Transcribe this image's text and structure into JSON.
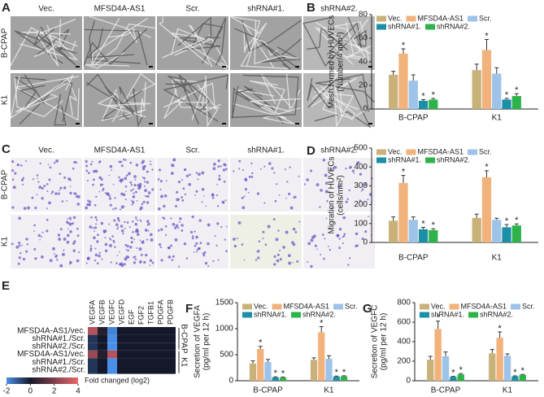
{
  "image_panels": [
    {
      "panel_label": "A",
      "columns": [
        "Vec.",
        "MFSD4A-AS1",
        "Scr.",
        "shRNA#1.",
        "shRNA#2."
      ],
      "rows": [
        "B-CPAP",
        "K1"
      ]
    },
    {
      "panel_label": "C",
      "columns": [
        "Vec.",
        "MFSD4A-AS1",
        "Scr.",
        "shRNA#1.",
        "shRNA#2."
      ],
      "rows": [
        "B-CPAP",
        "K1"
      ]
    }
  ],
  "chart_data": [
    {
      "type": "bar",
      "panel_label": "B",
      "ylabel": [
        "Mesh formed by HUVECs",
        "(Number/4 mm²)"
      ],
      "categories": [
        "B-CPAP",
        "K1"
      ],
      "ylim": [
        0,
        80
      ],
      "yticks": [
        0,
        20,
        40,
        60,
        80
      ],
      "series": [
        {
          "name": "Vec.",
          "color": "#c8b27a",
          "values": [
            29,
            33
          ],
          "errors": [
            3,
            5
          ],
          "significance": [
            null,
            null
          ]
        },
        {
          "name": "MFSD4A-AS1",
          "color": "#f2b27c",
          "values": [
            47,
            50
          ],
          "errors": [
            4,
            9
          ],
          "significance": [
            "*",
            "*"
          ]
        },
        {
          "name": "Scr.",
          "color": "#9dc3e8",
          "values": [
            24,
            30
          ],
          "errors": [
            5,
            5
          ],
          "significance": [
            null,
            null
          ]
        },
        {
          "name": "shRNA#1.",
          "color": "#1b8fa6",
          "values": [
            7,
            8
          ],
          "errors": [
            1,
            1
          ],
          "significance": [
            "*",
            "*"
          ]
        },
        {
          "name": "shRNA#2.",
          "color": "#2eb34b",
          "values": [
            8,
            11
          ],
          "errors": [
            1,
            2
          ],
          "significance": [
            "*",
            "*"
          ]
        }
      ]
    },
    {
      "type": "bar",
      "panel_label": "D",
      "ylabel": [
        "Migration of HUVECs",
        "(cells/mm²)"
      ],
      "categories": [
        "B-CPAP",
        "K1"
      ],
      "ylim": [
        0,
        500
      ],
      "yticks": [
        0,
        100,
        200,
        300,
        400,
        500
      ],
      "series": [
        {
          "name": "Vec.",
          "color": "#c8b27a",
          "values": [
            115,
            130
          ],
          "errors": [
            20,
            20
          ],
          "significance": [
            null,
            null
          ]
        },
        {
          "name": "MFSD4A-AS1",
          "color": "#f2b27c",
          "values": [
            315,
            345
          ],
          "errors": [
            40,
            35
          ],
          "significance": [
            "*",
            "*"
          ]
        },
        {
          "name": "Scr.",
          "color": "#9dc3e8",
          "values": [
            120,
            120
          ],
          "errors": [
            15,
            8
          ],
          "significance": [
            null,
            null
          ]
        },
        {
          "name": "shRNA#1.",
          "color": "#1b8fa6",
          "values": [
            70,
            80
          ],
          "errors": [
            10,
            15
          ],
          "significance": [
            "*",
            "*"
          ]
        },
        {
          "name": "shRNA#2.",
          "color": "#2eb34b",
          "values": [
            65,
            90
          ],
          "errors": [
            8,
            8
          ],
          "significance": [
            "*",
            "*"
          ]
        }
      ]
    },
    {
      "type": "bar",
      "panel_label": "F",
      "ylabel": [
        "Secretion of VEGFA",
        "(pg/ml per 12 h)"
      ],
      "categories": [
        "B-CPAP",
        "K1"
      ],
      "ylim": [
        0,
        1500
      ],
      "yticks": [
        0,
        500,
        1000,
        1500
      ],
      "series": [
        {
          "name": "Vec.",
          "color": "#c8b27a",
          "values": [
            330,
            400
          ],
          "errors": [
            50,
            40
          ],
          "significance": [
            null,
            null
          ]
        },
        {
          "name": "MFSD4A-AS1",
          "color": "#f2b27c",
          "values": [
            610,
            930
          ],
          "errors": [
            50,
            110
          ],
          "significance": [
            "*",
            "*"
          ]
        },
        {
          "name": "Scr.",
          "color": "#9dc3e8",
          "values": [
            360,
            420
          ],
          "errors": [
            50,
            60
          ],
          "significance": [
            null,
            null
          ]
        },
        {
          "name": "shRNA#1.",
          "color": "#1b8fa6",
          "values": [
            65,
            80
          ],
          "errors": [
            10,
            10
          ],
          "significance": [
            "*",
            "*"
          ]
        },
        {
          "name": "shRNA#2.",
          "color": "#2eb34b",
          "values": [
            60,
            85
          ],
          "errors": [
            10,
            10
          ],
          "significance": [
            "*",
            "*"
          ]
        }
      ]
    },
    {
      "type": "bar",
      "panel_label": "G",
      "ylabel": [
        "Secretion of VEGFC",
        "(pg/ml per 12 h)"
      ],
      "categories": [
        "B-CPAP",
        "K1"
      ],
      "ylim": [
        0,
        800
      ],
      "yticks": [
        0,
        200,
        400,
        600,
        800
      ],
      "series": [
        {
          "name": "Vec.",
          "color": "#c8b27a",
          "values": [
            215,
            280
          ],
          "errors": [
            35,
            40
          ],
          "significance": [
            null,
            null
          ]
        },
        {
          "name": "MFSD4A-AS1",
          "color": "#f2b27c",
          "values": [
            530,
            440
          ],
          "errors": [
            80,
            60
          ],
          "significance": [
            "*",
            "*"
          ]
        },
        {
          "name": "Scr.",
          "color": "#9dc3e8",
          "values": [
            250,
            255
          ],
          "errors": [
            45,
            20
          ],
          "significance": [
            null,
            null
          ]
        },
        {
          "name": "shRNA#1.",
          "color": "#1b8fa6",
          "values": [
            40,
            45
          ],
          "errors": [
            5,
            5
          ],
          "significance": [
            "*",
            "*"
          ]
        },
        {
          "name": "shRNA#2.",
          "color": "#2eb34b",
          "values": [
            65,
            60
          ],
          "errors": [
            8,
            5
          ],
          "significance": [
            "*",
            "*"
          ]
        }
      ]
    },
    {
      "type": "heatmap",
      "panel_label": "E",
      "x": [
        "VEGFA",
        "VEGFB",
        "VEGFC",
        "VEGFD",
        "EGF",
        "FGF2",
        "TGFB1",
        "PDGFA",
        "PDGFB"
      ],
      "y": [
        "MFSD4A-AS1/vec.",
        "shRNA#1./Scr.",
        "shRNA#2./Scr.",
        "MFSD4A-AS1/vec.",
        "shRNA#1./Scr.",
        "shRNA#2./Scr."
      ],
      "groups": [
        "B-CPAP",
        "K1"
      ],
      "values": [
        [
          3,
          0.3,
          -1.8,
          0,
          0,
          0,
          0,
          0,
          0
        ],
        [
          -0.5,
          0,
          -2,
          0,
          0,
          0,
          0,
          0,
          0
        ],
        [
          -0.5,
          0,
          -2,
          0,
          0,
          0,
          0,
          0,
          0
        ],
        [
          2.5,
          0.3,
          3,
          0,
          0,
          0,
          0,
          0,
          0
        ],
        [
          -0.5,
          0,
          -2,
          0,
          0,
          0,
          0,
          0,
          0
        ],
        [
          -0.5,
          0,
          -2,
          0,
          0,
          0,
          0,
          0,
          0
        ]
      ],
      "clim": [
        -2,
        4
      ],
      "cticks": [
        -2,
        0,
        2,
        4
      ],
      "colors": [
        "#4a8fe7",
        "#15182a",
        "#e8676b"
      ],
      "colorbar_label": "Fold changed (log2)"
    }
  ]
}
